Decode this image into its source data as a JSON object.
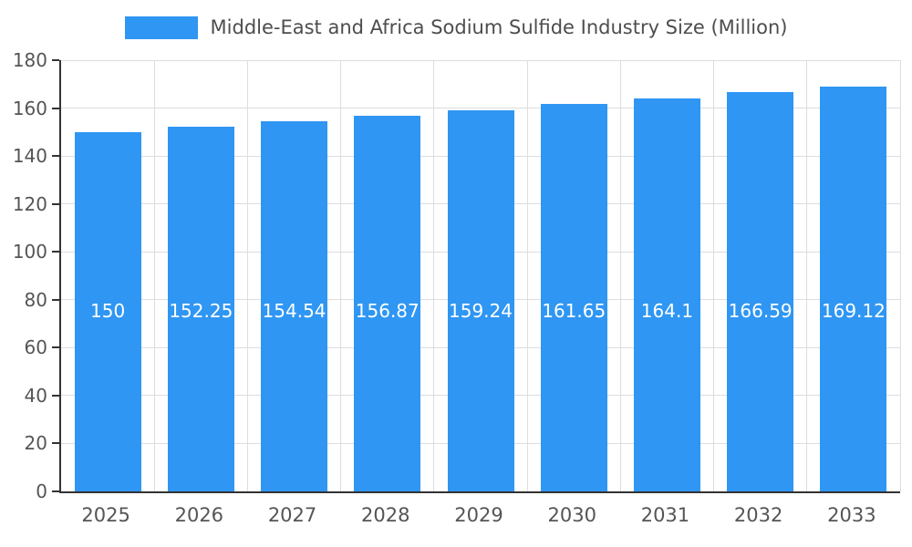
{
  "chart_data": {
    "type": "bar",
    "title": "Middle-East and Africa Sodium Sulfide Industry Size (Million)",
    "categories": [
      "2025",
      "2026",
      "2027",
      "2028",
      "2029",
      "2030",
      "2031",
      "2032",
      "2033"
    ],
    "values": [
      150,
      152.25,
      154.54,
      156.87,
      159.24,
      161.65,
      164.1,
      166.59,
      169.12
    ],
    "value_labels": [
      "150",
      "152.25",
      "154.54",
      "156.87",
      "159.24",
      "161.65",
      "164.1",
      "166.59",
      "169.12"
    ],
    "xlabel": "",
    "ylabel": "",
    "ylim": [
      0,
      180
    ],
    "ytick_step": 20,
    "grid": true,
    "legend_position": "top",
    "colors": {
      "bar": "#2f96f3",
      "bar_value_text": "#ffffff",
      "axis_text": "#555555",
      "title_text": "#4d4d4d",
      "gridline": "#dddddd",
      "axis_line": "#333333"
    }
  }
}
